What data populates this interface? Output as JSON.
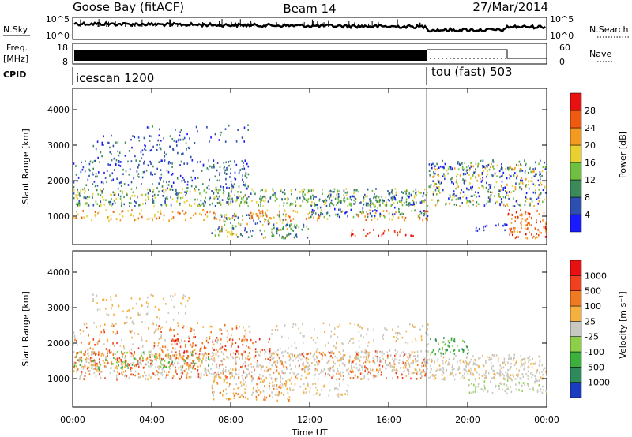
{
  "header": {
    "station": "Goose Bay (fitACF)",
    "beam": "Beam 14",
    "date": "27/Mar/2014"
  },
  "aux_panels": {
    "nsky_label": "N.Sky",
    "nsky_ticks": [
      "10^5",
      "10^0"
    ],
    "nsearch_label": "N.Search",
    "freq_label_1": "Freq.",
    "freq_label_2": "[MHz]",
    "freq_ticks": [
      "18",
      "8"
    ],
    "nave_label": "Nave",
    "nave_ticks": [
      "60",
      "0"
    ],
    "cpid_label": "CPID",
    "cpid_1": "icescan 1200",
    "cpid_2": "tou (fast) 503"
  },
  "chart_data": [
    {
      "type": "heatmap",
      "panel": "power",
      "ylabel": "Slant Range [km]",
      "xlabel": "Time UT",
      "xticks": [
        "00:00",
        "04:00",
        "08:00",
        "12:00",
        "16:00",
        "20:00",
        "00:00"
      ],
      "yticks": [
        "1000",
        "2000",
        "3000",
        "4000"
      ],
      "ylim": [
        200,
        4600
      ],
      "xlim": [
        0,
        24
      ],
      "colorbar_label": "Power [dB]",
      "colorbar_ticks": [
        "4",
        "8",
        "12",
        "16",
        "20",
        "24",
        "28"
      ],
      "colors": [
        "#1a1aff",
        "#2d4fb0",
        "#3c8a5a",
        "#6fc040",
        "#e8d030",
        "#f59a20",
        "#f05a10",
        "#e81010"
      ],
      "mode_change_hour": 18.0
    },
    {
      "type": "heatmap",
      "panel": "velocity",
      "ylabel": "Slant Range [km]",
      "xlabel": "Time UT",
      "xticks": [
        "00:00",
        "04:00",
        "08:00",
        "12:00",
        "16:00",
        "20:00",
        "00:00"
      ],
      "yticks": [
        "1000",
        "2000",
        "3000",
        "4000"
      ],
      "ylim": [
        200,
        4600
      ],
      "xlim": [
        0,
        24
      ],
      "colorbar_label": "Velocity [m s⁻¹]",
      "colorbar_ticks": [
        "1000",
        "500",
        "100",
        "25",
        "-25",
        "-100",
        "-500",
        "-1000"
      ],
      "colors": [
        "#1a3cc0",
        "#2d8a5a",
        "#3cb03c",
        "#8cd048",
        "#c8c8c0",
        "#f5b040",
        "#f07a20",
        "#f04020",
        "#e81010"
      ],
      "mode_change_hour": 18.0
    }
  ]
}
